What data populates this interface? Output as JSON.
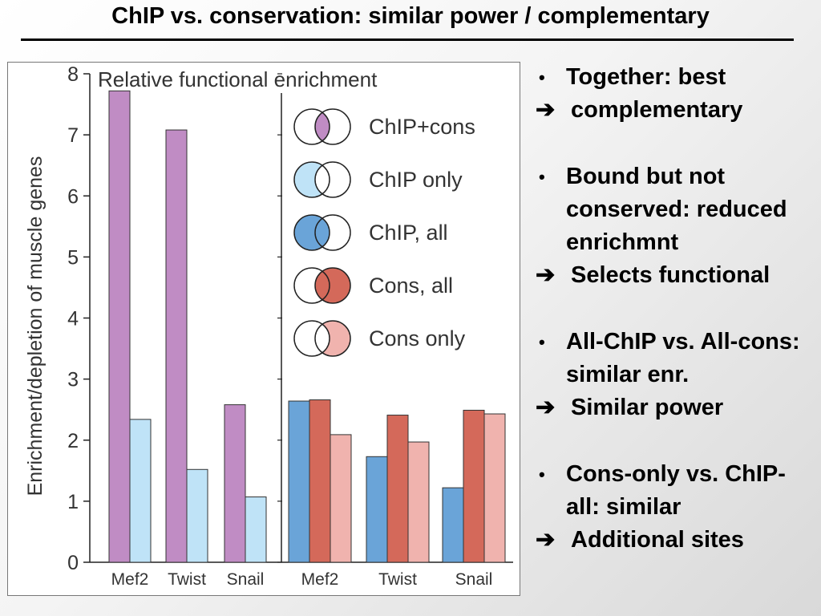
{
  "slide": {
    "title": "ChIP vs. conservation: similar power / complementary"
  },
  "points": [
    {
      "bullet": "Together: best",
      "conclusion": "complementary"
    },
    {
      "bullet": "Bound but not conserved: reduced enrichmnt",
      "conclusion": "Selects functional"
    },
    {
      "bullet": "All-ChIP vs. All-cons: similar enr.",
      "conclusion": "Similar power"
    },
    {
      "bullet": "Cons-only vs. ChIP-all: similar",
      "conclusion": "Additional sites"
    }
  ],
  "bullet_symbol": "•",
  "arrow_symbol": "➔",
  "chart_data": {
    "type": "bar",
    "title": "Relative functional enrichment",
    "ylabel": "Enrichment/depletion of muscle genes",
    "xlabel": "",
    "ylim": [
      0,
      8
    ],
    "yticks": [
      0,
      1,
      2,
      3,
      4,
      5,
      6,
      7,
      8
    ],
    "grid": false,
    "legend_position": "top-right",
    "panels": [
      {
        "categories": [
          "Mef2",
          "Twist",
          "Snail"
        ],
        "series": [
          {
            "name": "ChIP+cons",
            "color": "#c08cc4",
            "values": [
              7.72,
              7.08,
              2.58
            ]
          },
          {
            "name": "ChIP only",
            "color": "#bfe3f7",
            "values": [
              2.34,
              1.52,
              1.07
            ]
          }
        ]
      },
      {
        "categories": [
          "Mef2",
          "Twist",
          "Snail"
        ],
        "series": [
          {
            "name": "ChIP, all",
            "color": "#6aa4d8",
            "values": [
              2.64,
              1.73,
              1.22
            ]
          },
          {
            "name": "Cons, all",
            "color": "#d4695a",
            "values": [
              2.66,
              2.41,
              2.49
            ]
          },
          {
            "name": "Cons only",
            "color": "#f0b3ae",
            "values": [
              2.09,
              1.97,
              2.43
            ]
          }
        ]
      }
    ],
    "legend": [
      {
        "name": "ChIP+cons",
        "color": "#c08cc4",
        "region": "intersection"
      },
      {
        "name": "ChIP only",
        "color": "#bfe3f7",
        "region": "left-only"
      },
      {
        "name": "ChIP, all",
        "color": "#6aa4d8",
        "region": "left"
      },
      {
        "name": "Cons, all",
        "color": "#d4695a",
        "region": "right"
      },
      {
        "name": "Cons only",
        "color": "#f0b3ae",
        "region": "right-only"
      }
    ]
  }
}
